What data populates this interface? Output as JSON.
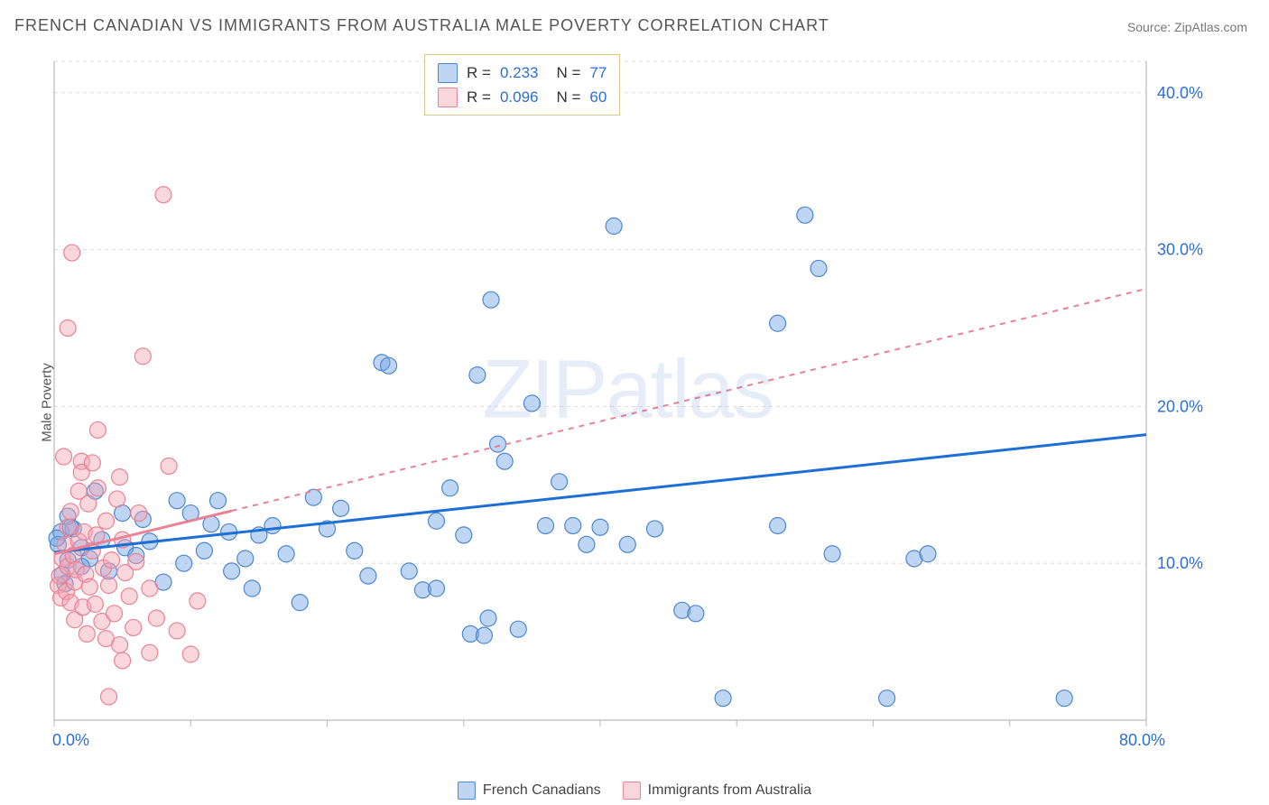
{
  "title": "FRENCH CANADIAN VS IMMIGRANTS FROM AUSTRALIA MALE POVERTY CORRELATION CHART",
  "source": "Source: ZipAtlas.com",
  "ylabel": "Male Poverty",
  "watermark": "ZIPatlas",
  "chart": {
    "type": "scatter",
    "xlim": [
      0,
      80
    ],
    "ylim": [
      0,
      42
    ],
    "xtick_labels": [
      "0.0%",
      "80.0%"
    ],
    "ytick_values": [
      10,
      20,
      30,
      40
    ],
    "ytick_labels": [
      "10.0%",
      "20.0%",
      "30.0%",
      "40.0%"
    ],
    "grid_color": "#dddddd",
    "axis_color": "#bbbbbb",
    "background": "#ffffff",
    "tick_label_color": "#2b6fd6",
    "tick_fontsize": 18,
    "marker_radius": 9,
    "marker_opacity": 0.55,
    "series": [
      {
        "name": "French Canadians",
        "color": "#6fa5e6",
        "fill": "rgba(111,165,230,0.45)",
        "stroke": "#4d87cf",
        "R": "0.233",
        "N": "77",
        "trend": {
          "x1": 0,
          "y1": 10.7,
          "x2": 80,
          "y2": 18.2,
          "width": 3,
          "dash": "",
          "color": "#1d6fd6"
        },
        "points": [
          [
            0.5,
            12
          ],
          [
            0.3,
            11.2
          ],
          [
            1,
            10.2
          ],
          [
            0.6,
            9.3
          ],
          [
            1,
            13
          ],
          [
            2,
            11
          ],
          [
            0.2,
            11.6
          ],
          [
            1.4,
            12.2
          ],
          [
            2.6,
            10.3
          ],
          [
            5.2,
            11
          ],
          [
            5,
            13.2
          ],
          [
            6,
            10.5
          ],
          [
            7,
            11.4
          ],
          [
            8,
            8.8
          ],
          [
            9,
            14
          ],
          [
            9.5,
            10
          ],
          [
            10,
            13.2
          ],
          [
            11,
            10.8
          ],
          [
            11.5,
            12.5
          ],
          [
            12,
            14
          ],
          [
            12.8,
            12
          ],
          [
            13,
            9.5
          ],
          [
            14,
            10.3
          ],
          [
            15,
            11.8
          ],
          [
            16,
            12.4
          ],
          [
            17,
            10.6
          ],
          [
            18,
            7.5
          ],
          [
            19,
            14.2
          ],
          [
            20,
            12.2
          ],
          [
            21,
            13.5
          ],
          [
            22,
            10.8
          ],
          [
            23,
            9.2
          ],
          [
            24,
            22.8
          ],
          [
            24.5,
            22.6
          ],
          [
            26,
            9.5
          ],
          [
            27,
            8.3
          ],
          [
            28,
            8.4
          ],
          [
            29,
            14.8
          ],
          [
            30,
            11.8
          ],
          [
            30.5,
            5.5
          ],
          [
            31,
            22
          ],
          [
            31.5,
            5.4
          ],
          [
            31.8,
            6.5
          ],
          [
            32,
            26.8
          ],
          [
            32.5,
            17.6
          ],
          [
            33,
            16.5
          ],
          [
            34,
            5.8
          ],
          [
            35,
            20.2
          ],
          [
            36,
            12.4
          ],
          [
            37,
            15.2
          ],
          [
            38,
            12.4
          ],
          [
            39,
            11.2
          ],
          [
            40,
            12.3
          ],
          [
            41,
            31.5
          ],
          [
            42,
            11.2
          ],
          [
            44,
            12.2
          ],
          [
            46,
            7.0
          ],
          [
            47,
            6.8
          ],
          [
            49,
            1.4
          ],
          [
            53,
            25.3
          ],
          [
            53,
            12.4
          ],
          [
            55,
            32.2
          ],
          [
            56,
            28.8
          ],
          [
            57,
            10.6
          ],
          [
            61,
            1.4
          ],
          [
            63,
            10.3
          ],
          [
            64,
            10.6
          ],
          [
            74,
            1.4
          ],
          [
            28,
            12.7
          ],
          [
            3,
            14.6
          ],
          [
            6.5,
            12.8
          ],
          [
            4,
            9.5
          ],
          [
            2,
            9.8
          ],
          [
            0.8,
            8.7
          ],
          [
            1.2,
            12.3
          ],
          [
            3.5,
            11.5
          ],
          [
            14.5,
            8.4
          ]
        ]
      },
      {
        "name": "Immigrants from Australia",
        "color": "#f4a3b3",
        "fill": "rgba(244,163,179,0.45)",
        "stroke": "#e98296",
        "R": "0.096",
        "N": "60",
        "trend": {
          "x1": 0,
          "y1": 10.6,
          "x2": 80,
          "y2": 27.5,
          "width": 2,
          "dash": "6,6",
          "color": "#e98296",
          "solid_until_x": 13
        },
        "points": [
          [
            0.3,
            8.6
          ],
          [
            0.4,
            9.2
          ],
          [
            0.5,
            7.8
          ],
          [
            0.6,
            10.3
          ],
          [
            0.8,
            11.2
          ],
          [
            0.9,
            8.2
          ],
          [
            1,
            9.8
          ],
          [
            1,
            12.3
          ],
          [
            1.2,
            7.5
          ],
          [
            1.2,
            13.3
          ],
          [
            1.4,
            10.5
          ],
          [
            1.5,
            8.8
          ],
          [
            1.5,
            6.4
          ],
          [
            1.6,
            9.6
          ],
          [
            1.8,
            11.4
          ],
          [
            2,
            16.5
          ],
          [
            2,
            15.8
          ],
          [
            2.1,
            7.2
          ],
          [
            2.2,
            12
          ],
          [
            2.3,
            9.3
          ],
          [
            2.4,
            5.5
          ],
          [
            2.5,
            13.8
          ],
          [
            2.6,
            8.5
          ],
          [
            2.8,
            10.8
          ],
          [
            2.8,
            16.4
          ],
          [
            3,
            7.4
          ],
          [
            3.1,
            11.8
          ],
          [
            3.2,
            14.8
          ],
          [
            3.2,
            18.5
          ],
          [
            3.5,
            6.3
          ],
          [
            3.6,
            9.7
          ],
          [
            3.8,
            5.2
          ],
          [
            3.8,
            12.7
          ],
          [
            4,
            8.6
          ],
          [
            4,
            1.5
          ],
          [
            4.2,
            10.2
          ],
          [
            4.4,
            6.8
          ],
          [
            4.6,
            14.1
          ],
          [
            4.8,
            15.5
          ],
          [
            4.8,
            4.8
          ],
          [
            5,
            3.8
          ],
          [
            5,
            11.5
          ],
          [
            5.2,
            9.4
          ],
          [
            5.5,
            7.9
          ],
          [
            5.8,
            5.9
          ],
          [
            6,
            10.1
          ],
          [
            6.2,
            13.2
          ],
          [
            6.5,
            23.2
          ],
          [
            7,
            8.4
          ],
          [
            7,
            4.3
          ],
          [
            7.5,
            6.5
          ],
          [
            8,
            33.5
          ],
          [
            8.4,
            16.2
          ],
          [
            9,
            5.7
          ],
          [
            10,
            4.2
          ],
          [
            10.5,
            7.6
          ],
          [
            1,
            25.0
          ],
          [
            1.3,
            29.8
          ],
          [
            0.7,
            16.8
          ],
          [
            1.8,
            14.6
          ]
        ]
      }
    ]
  },
  "legend_top": {
    "rows": [
      {
        "swatch_fill": "rgba(111,165,230,0.45)",
        "swatch_stroke": "#4d87cf",
        "R": "0.233",
        "N": "77"
      },
      {
        "swatch_fill": "rgba(244,163,179,0.45)",
        "swatch_stroke": "#e98296",
        "R": "0.096",
        "N": "60"
      }
    ]
  },
  "legend_bottom": [
    {
      "label": "French Canadians",
      "swatch_fill": "rgba(111,165,230,0.45)",
      "swatch_stroke": "#4d87cf"
    },
    {
      "label": "Immigrants from Australia",
      "swatch_fill": "rgba(244,163,179,0.45)",
      "swatch_stroke": "#e98296"
    }
  ]
}
